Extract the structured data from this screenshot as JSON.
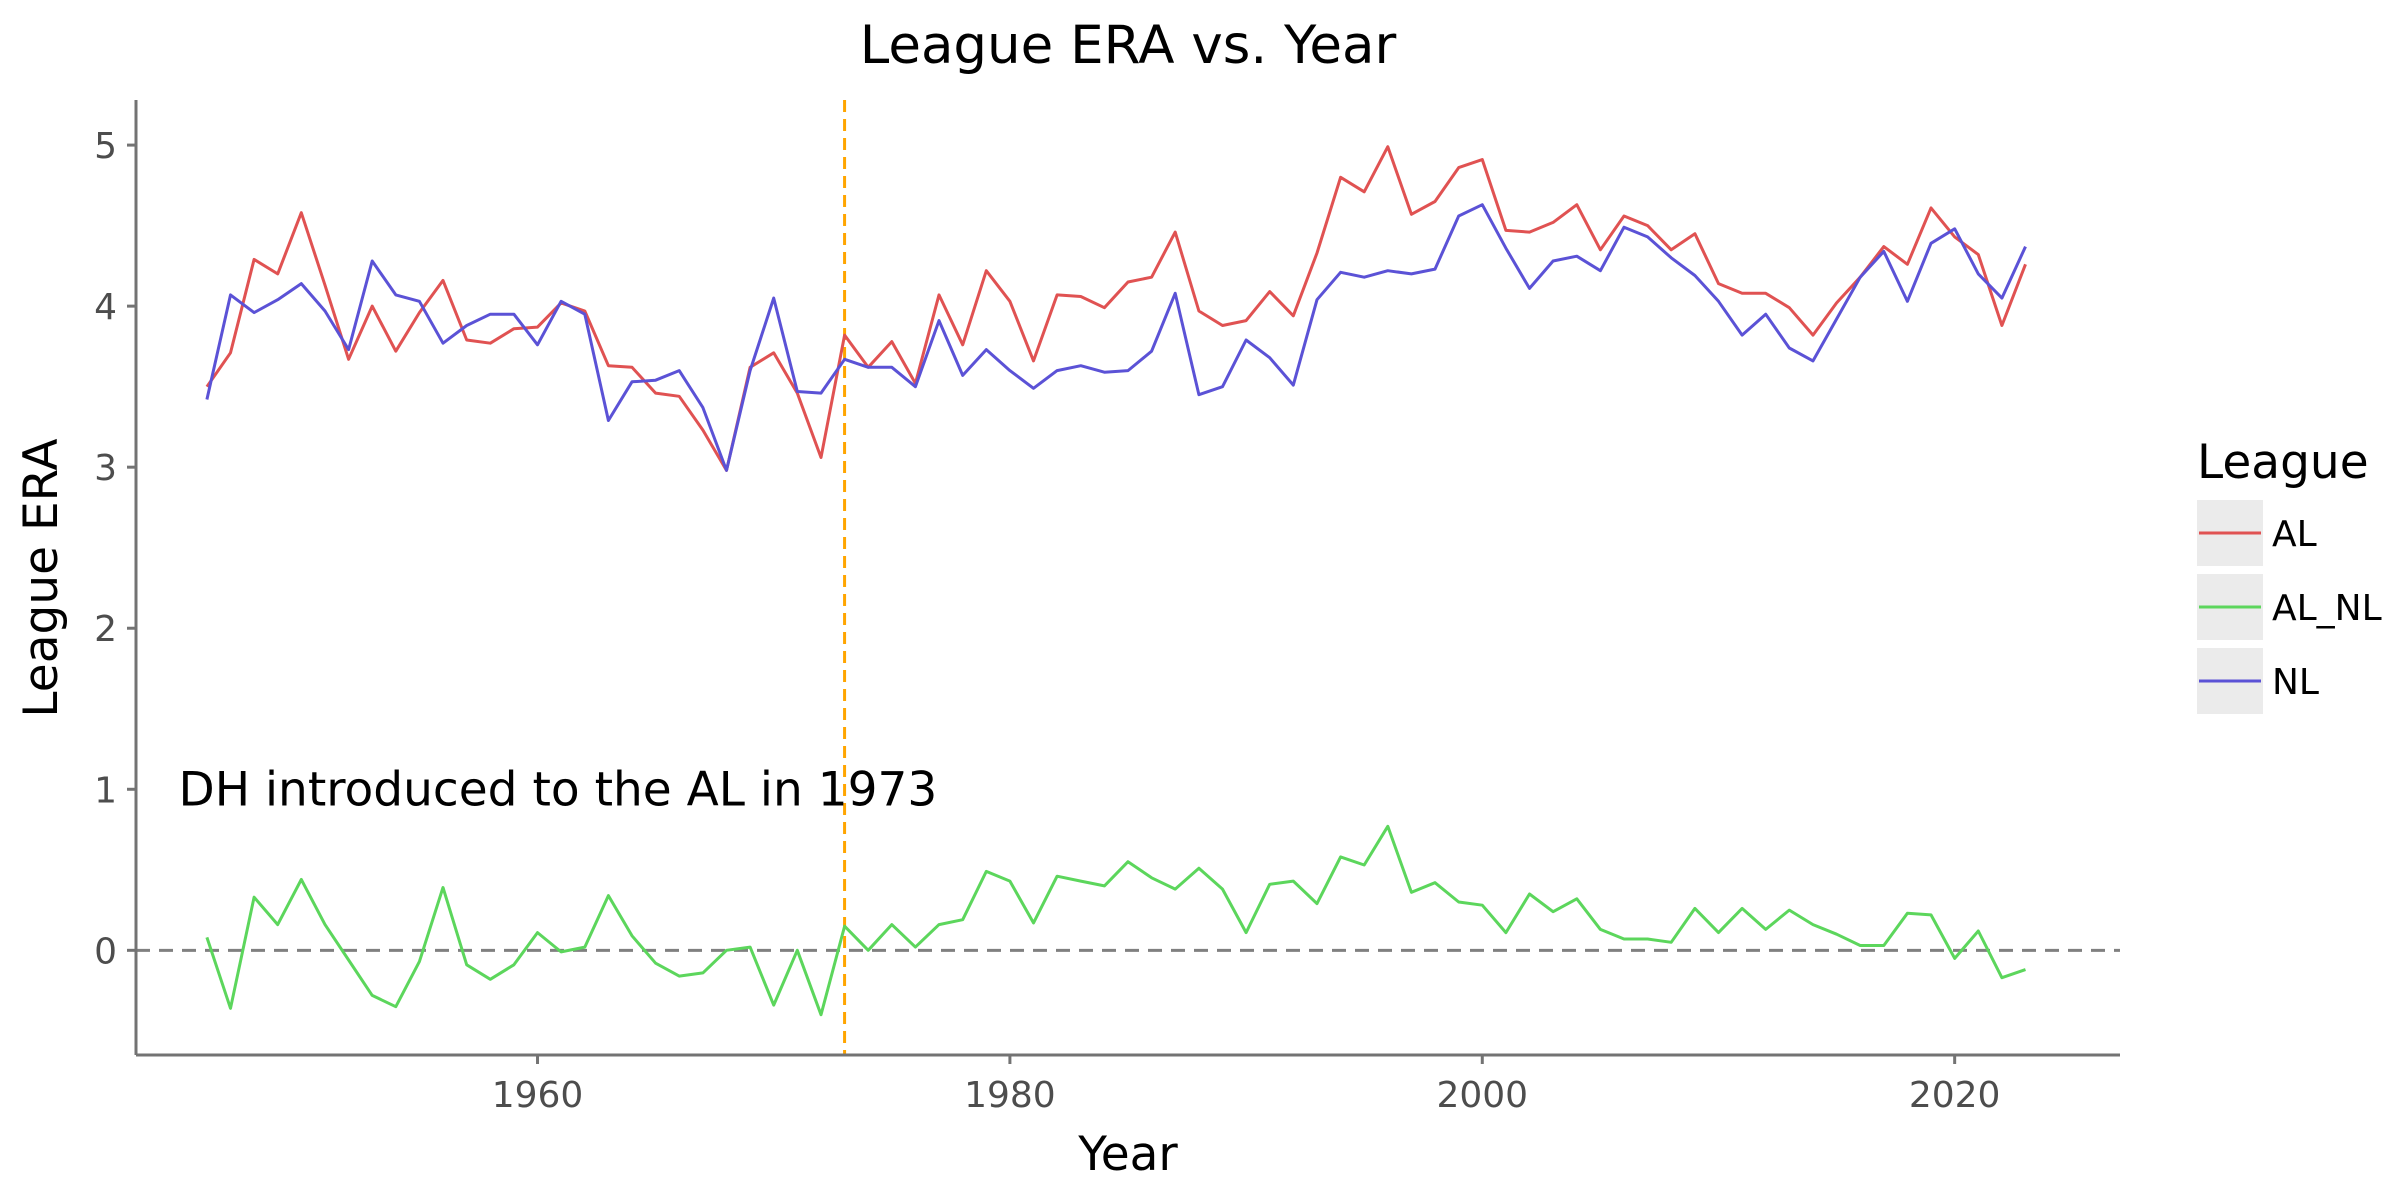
{
  "chart_data": {
    "type": "line",
    "title": "League ERA vs. Year",
    "xlabel": "Year",
    "ylabel": "League ERA",
    "xlim": [
      1943,
      2027
    ],
    "ylim": [
      -0.65,
      5.28
    ],
    "x_ticks": [
      1960,
      1980,
      2000,
      2020
    ],
    "y_ticks": [
      0,
      1,
      2,
      3,
      4,
      5
    ],
    "grid": false,
    "legend": {
      "title": "League",
      "placement": "right",
      "entries": [
        "AL",
        "AL_NL",
        "NL"
      ]
    },
    "reference_lines": {
      "vertical": {
        "x": 1973,
        "color": "#FFA500",
        "style": "dashed"
      },
      "horizontal": {
        "y": 0,
        "color": "#808080",
        "style": "dashed"
      }
    },
    "annotation": {
      "text": "DH introduced to the AL in 1973",
      "x": 1944.8,
      "y": 1.0
    },
    "x": [
      1946,
      1947,
      1948,
      1949,
      1950,
      1951,
      1952,
      1953,
      1954,
      1955,
      1956,
      1957,
      1958,
      1959,
      1960,
      1961,
      1962,
      1963,
      1964,
      1965,
      1966,
      1967,
      1968,
      1969,
      1970,
      1971,
      1972,
      1973,
      1974,
      1975,
      1976,
      1977,
      1978,
      1979,
      1980,
      1981,
      1982,
      1983,
      1984,
      1985,
      1986,
      1987,
      1988,
      1989,
      1990,
      1991,
      1992,
      1993,
      1994,
      1995,
      1996,
      1997,
      1998,
      1999,
      2000,
      2001,
      2002,
      2003,
      2004,
      2005,
      2006,
      2007,
      2008,
      2009,
      2010,
      2011,
      2012,
      2013,
      2014,
      2015,
      2016,
      2017,
      2018,
      2019,
      2020,
      2021,
      2022,
      2023
    ],
    "series": [
      {
        "name": "AL",
        "color": "#E05252",
        "values": [
          3.5,
          3.71,
          4.29,
          4.2,
          4.58,
          4.13,
          3.67,
          4.0,
          3.72,
          3.96,
          4.16,
          3.79,
          3.77,
          3.86,
          3.87,
          4.02,
          3.97,
          3.63,
          3.62,
          3.46,
          3.44,
          3.23,
          2.98,
          3.62,
          3.71,
          3.46,
          3.06,
          3.82,
          3.62,
          3.78,
          3.52,
          4.07,
          3.76,
          4.22,
          4.03,
          3.66,
          4.07,
          4.06,
          3.99,
          4.15,
          4.18,
          4.46,
          3.97,
          3.88,
          3.91,
          4.09,
          3.94,
          4.33,
          4.8,
          4.71,
          4.99,
          4.57,
          4.65,
          4.86,
          4.91,
          4.47,
          4.46,
          4.52,
          4.63,
          4.35,
          4.56,
          4.5,
          4.35,
          4.45,
          4.14,
          4.08,
          4.08,
          3.99,
          3.82,
          4.02,
          4.18,
          4.37,
          4.26,
          4.61,
          4.43,
          4.32,
          3.88,
          4.26
        ]
      },
      {
        "name": "AL_NL",
        "color": "#5CD65C",
        "values": [
          0.08,
          -0.36,
          0.33,
          0.16,
          0.44,
          0.16,
          -0.06,
          -0.28,
          -0.35,
          -0.07,
          0.39,
          -0.09,
          -0.18,
          -0.09,
          0.11,
          -0.01,
          0.02,
          0.34,
          0.09,
          -0.08,
          -0.16,
          -0.14,
          0.0,
          0.02,
          -0.34,
          0.0,
          -0.4,
          0.15,
          0.0,
          0.16,
          0.02,
          0.16,
          0.19,
          0.49,
          0.43,
          0.17,
          0.46,
          0.43,
          0.4,
          0.55,
          0.45,
          0.38,
          0.51,
          0.38,
          0.11,
          0.41,
          0.43,
          0.29,
          0.58,
          0.53,
          0.77,
          0.36,
          0.42,
          0.3,
          0.28,
          0.11,
          0.35,
          0.24,
          0.32,
          0.13,
          0.07,
          0.07,
          0.05,
          0.26,
          0.11,
          0.26,
          0.13,
          0.25,
          0.16,
          0.1,
          0.03,
          0.03,
          0.23,
          0.22,
          -0.05,
          0.12,
          -0.17,
          -0.12
        ]
      },
      {
        "name": "NL",
        "color": "#5B52D6",
        "values": [
          3.42,
          4.07,
          3.96,
          4.04,
          4.14,
          3.97,
          3.73,
          4.28,
          4.07,
          4.03,
          3.77,
          3.88,
          3.95,
          3.95,
          3.76,
          4.03,
          3.95,
          3.29,
          3.53,
          3.54,
          3.6,
          3.37,
          2.98,
          3.6,
          4.05,
          3.47,
          3.46,
          3.67,
          3.62,
          3.62,
          3.5,
          3.91,
          3.57,
          3.73,
          3.6,
          3.49,
          3.6,
          3.63,
          3.59,
          3.6,
          3.72,
          4.08,
          3.45,
          3.5,
          3.79,
          3.68,
          3.51,
          4.04,
          4.21,
          4.18,
          4.22,
          4.2,
          4.23,
          4.56,
          4.63,
          4.36,
          4.11,
          4.28,
          4.31,
          4.22,
          4.49,
          4.43,
          4.3,
          4.19,
          4.03,
          3.82,
          3.95,
          3.74,
          3.66,
          3.92,
          4.18,
          4.34,
          4.03,
          4.39,
          4.48,
          4.2,
          4.05,
          4.37
        ]
      }
    ]
  }
}
